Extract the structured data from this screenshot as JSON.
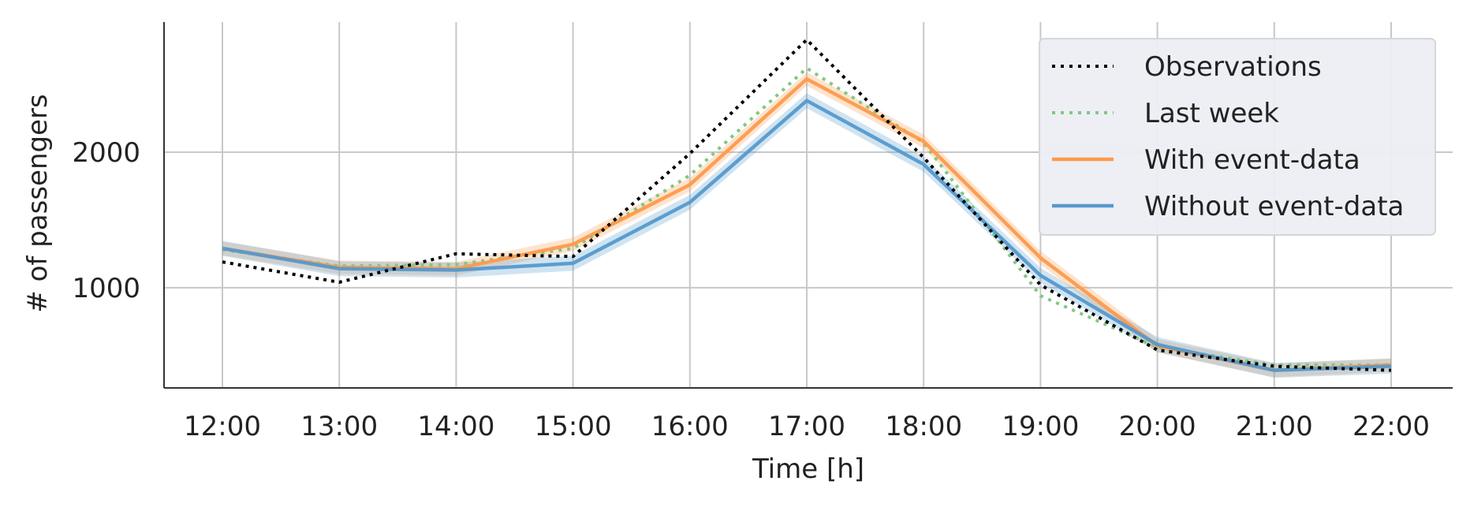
{
  "chart_data": {
    "type": "line",
    "title": "",
    "xlabel": "Time [h]",
    "ylabel": "# of passengers",
    "categories": [
      "12:00",
      "13:00",
      "14:00",
      "15:00",
      "16:00",
      "17:00",
      "18:00",
      "19:00",
      "20:00",
      "21:00",
      "22:00"
    ],
    "ylim": [
      260,
      2960
    ],
    "yticks": [
      1000,
      2000
    ],
    "grid": true,
    "legend_position": "top-right",
    "series": [
      {
        "name": "Observations",
        "color": "#000000",
        "style": "dotted",
        "values": [
          1190,
          1040,
          1250,
          1230,
          1990,
          2830,
          1960,
          1020,
          540,
          420,
          390
        ]
      },
      {
        "name": "Last week",
        "color": "#7fc97f",
        "style": "dotted",
        "values": [
          1280,
          1160,
          1170,
          1290,
          1830,
          2620,
          2070,
          940,
          560,
          430,
          430
        ]
      },
      {
        "name": "With event-data",
        "color": "#fd9a4c",
        "style": "solid",
        "band": 50,
        "values": [
          1290,
          1150,
          1140,
          1320,
          1760,
          2540,
          2080,
          1220,
          570,
          390,
          430
        ]
      },
      {
        "name": "Without event-data",
        "color": "#5599cc",
        "style": "solid",
        "band": 55,
        "values": [
          1290,
          1140,
          1130,
          1180,
          1630,
          2380,
          1910,
          1090,
          580,
          390,
          420
        ]
      }
    ]
  }
}
